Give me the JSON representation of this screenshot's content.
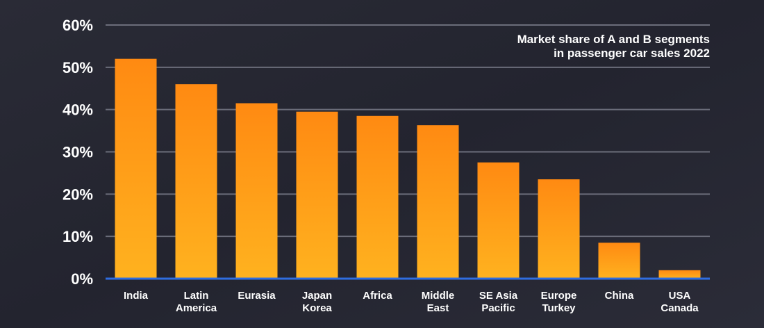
{
  "chart_data": {
    "type": "bar",
    "title_lines": [
      "Market share of A and B segments",
      "in passenger car sales 2022"
    ],
    "categories": [
      [
        "India"
      ],
      [
        "Latin",
        "America"
      ],
      [
        "Eurasia"
      ],
      [
        "Japan",
        "Korea"
      ],
      [
        "Africa"
      ],
      [
        "Middle",
        "East"
      ],
      [
        "SE Asia",
        "Pacific"
      ],
      [
        "Europe",
        "Turkey"
      ],
      [
        "China"
      ],
      [
        "USA",
        "Canada"
      ]
    ],
    "values": [
      52,
      46,
      41.5,
      39.5,
      38.5,
      36.3,
      27.5,
      23.5,
      8.5,
      2
    ],
    "ylim": [
      0,
      60
    ],
    "yticks": [
      "0%",
      "10%",
      "20%",
      "30%",
      "40%",
      "50%",
      "60%"
    ],
    "grid": true,
    "colors": {
      "background": "#23242f",
      "bar_top": "#ff8a12",
      "bar_bottom": "#ffb21f",
      "grid": "#6b6d7a",
      "baseline": "#2f6de0",
      "text": "#ffffff"
    }
  }
}
